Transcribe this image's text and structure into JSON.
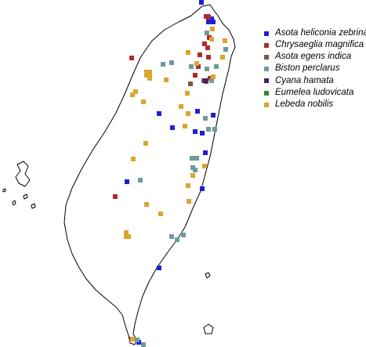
{
  "legend": {
    "items": [
      {
        "label": "Asota heliconia zebrina",
        "color": "#1f1fd2",
        "icon": "square-marker"
      },
      {
        "label": "Chrysaeglia magnifica",
        "color": "#b02a2a",
        "icon": "square-marker"
      },
      {
        "label": "Asota egens indica",
        "color": "#7d5a3c",
        "icon": "square-marker"
      },
      {
        "label": "Biston perclarus",
        "color": "#6f9a9a",
        "icon": "square-marker"
      },
      {
        "label": "Cyana hamata",
        "color": "#4a1f6e",
        "icon": "square-marker"
      },
      {
        "label": "Eumelea ludovicata",
        "color": "#2e8b2e",
        "icon": "square-marker"
      },
      {
        "label": "Lebeda nobilis",
        "color": "#d9a62e",
        "icon": "square-marker"
      }
    ]
  },
  "records": [
    {
      "species": "Asota heliconia zebrina",
      "points": [
        [
          257,
          3
        ],
        [
          265,
          21
        ],
        [
          270,
          24
        ],
        [
          266,
          28
        ],
        [
          272,
          28
        ],
        [
          203,
          145
        ],
        [
          220,
          163
        ],
        [
          249,
          168
        ],
        [
          258,
          170
        ],
        [
          272,
          147
        ],
        [
          252,
          142
        ],
        [
          162,
          232
        ],
        [
          203,
          342
        ],
        [
          262,
          195
        ],
        [
          258,
          241
        ],
        [
          177,
          437
        ]
      ]
    },
    {
      "species": "Chrysaeglia magnifica",
      "points": [
        [
          263,
          21
        ],
        [
          266,
          22
        ],
        [
          267,
          48
        ],
        [
          261,
          56
        ],
        [
          265,
          61
        ],
        [
          255,
          70
        ],
        [
          266,
          73
        ],
        [
          253,
          85
        ],
        [
          249,
          96
        ],
        [
          268,
          100
        ],
        [
          147,
          251
        ],
        [
          168,
          74
        ],
        [
          168,
          433
        ]
      ]
    },
    {
      "species": "Asota egens indica",
      "points": [
        [
          260,
          103
        ],
        [
          263,
          104
        ],
        [
          243,
          107
        ]
      ]
    },
    {
      "species": "Biston perclarus",
      "points": [
        [
          264,
          42
        ],
        [
          288,
          63
        ],
        [
          208,
          82
        ],
        [
          219,
          80
        ],
        [
          244,
          85
        ],
        [
          264,
          88
        ],
        [
          276,
          85
        ],
        [
          270,
          103
        ],
        [
          262,
          151
        ],
        [
          266,
          165
        ],
        [
          274,
          165
        ],
        [
          251,
          202
        ],
        [
          246,
          214
        ],
        [
          249,
          217
        ],
        [
          245,
          202
        ],
        [
          179,
          230
        ],
        [
          219,
          302
        ],
        [
          226,
          306
        ],
        [
          234,
          300
        ],
        [
          175,
          434
        ],
        [
          183,
          440
        ]
      ]
    },
    {
      "species": "Cyana hamata",
      "points": [
        [
          262,
          103
        ]
      ]
    },
    {
      "species": "Eumelea ludovicata",
      "points": []
    },
    {
      "species": "Lebeda nobilis",
      "points": [
        [
          271,
          37
        ],
        [
          270,
          50
        ],
        [
          287,
          52
        ],
        [
          284,
          73
        ],
        [
          240,
          67
        ],
        [
          251,
          81
        ],
        [
          272,
          98
        ],
        [
          187,
          92
        ],
        [
          191,
          92
        ],
        [
          187,
          96
        ],
        [
          191,
          96
        ],
        [
          191,
          100
        ],
        [
          212,
          102
        ],
        [
          173,
          117
        ],
        [
          169,
          121
        ],
        [
          183,
          130
        ],
        [
          231,
          136
        ],
        [
          239,
          119
        ],
        [
          240,
          145
        ],
        [
          236,
          161
        ],
        [
          186,
          183
        ],
        [
          170,
          203
        ],
        [
          246,
          224
        ],
        [
          240,
          237
        ],
        [
          261,
          212
        ],
        [
          241,
          257
        ],
        [
          187,
          261
        ],
        [
          205,
          273
        ],
        [
          161,
          297
        ],
        [
          161,
          302
        ],
        [
          164,
          302
        ],
        [
          169,
          433
        ]
      ]
    }
  ]
}
